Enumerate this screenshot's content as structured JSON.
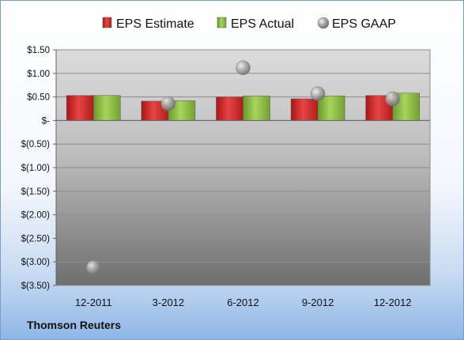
{
  "source_label": "Thomson Reuters",
  "chart_data": {
    "type": "bar",
    "categories": [
      "12-2011",
      "3-2012",
      "6-2012",
      "9-2012",
      "12-2012"
    ],
    "series": [
      {
        "name": "EPS Estimate",
        "type": "bar",
        "color": "#d42a2a",
        "values": [
          0.53,
          0.41,
          0.5,
          0.46,
          0.53
        ]
      },
      {
        "name": "EPS Actual",
        "type": "bar",
        "color": "#8cbf42",
        "values": [
          0.53,
          0.42,
          0.52,
          0.52,
          0.58
        ]
      },
      {
        "name": "EPS GAAP",
        "type": "scatter",
        "color": "#a6a6a6",
        "values": [
          -3.12,
          0.36,
          1.12,
          0.57,
          0.46
        ]
      }
    ],
    "yticks": [
      1.5,
      1.0,
      0.5,
      0,
      -0.5,
      -1.0,
      -1.5,
      -2.0,
      -2.5,
      -3.0,
      -3.5
    ],
    "ytick_labels": [
      "$1.50",
      "$1.00",
      "$0.50",
      "$-",
      "$(0.50)",
      "$(1.00)",
      "$(1.50)",
      "$(2.00)",
      "$(2.50)",
      "$(3.00)",
      "$(3.50)"
    ],
    "ylim": [
      -3.5,
      1.5
    ],
    "legend_position": "top",
    "grid": true
  }
}
